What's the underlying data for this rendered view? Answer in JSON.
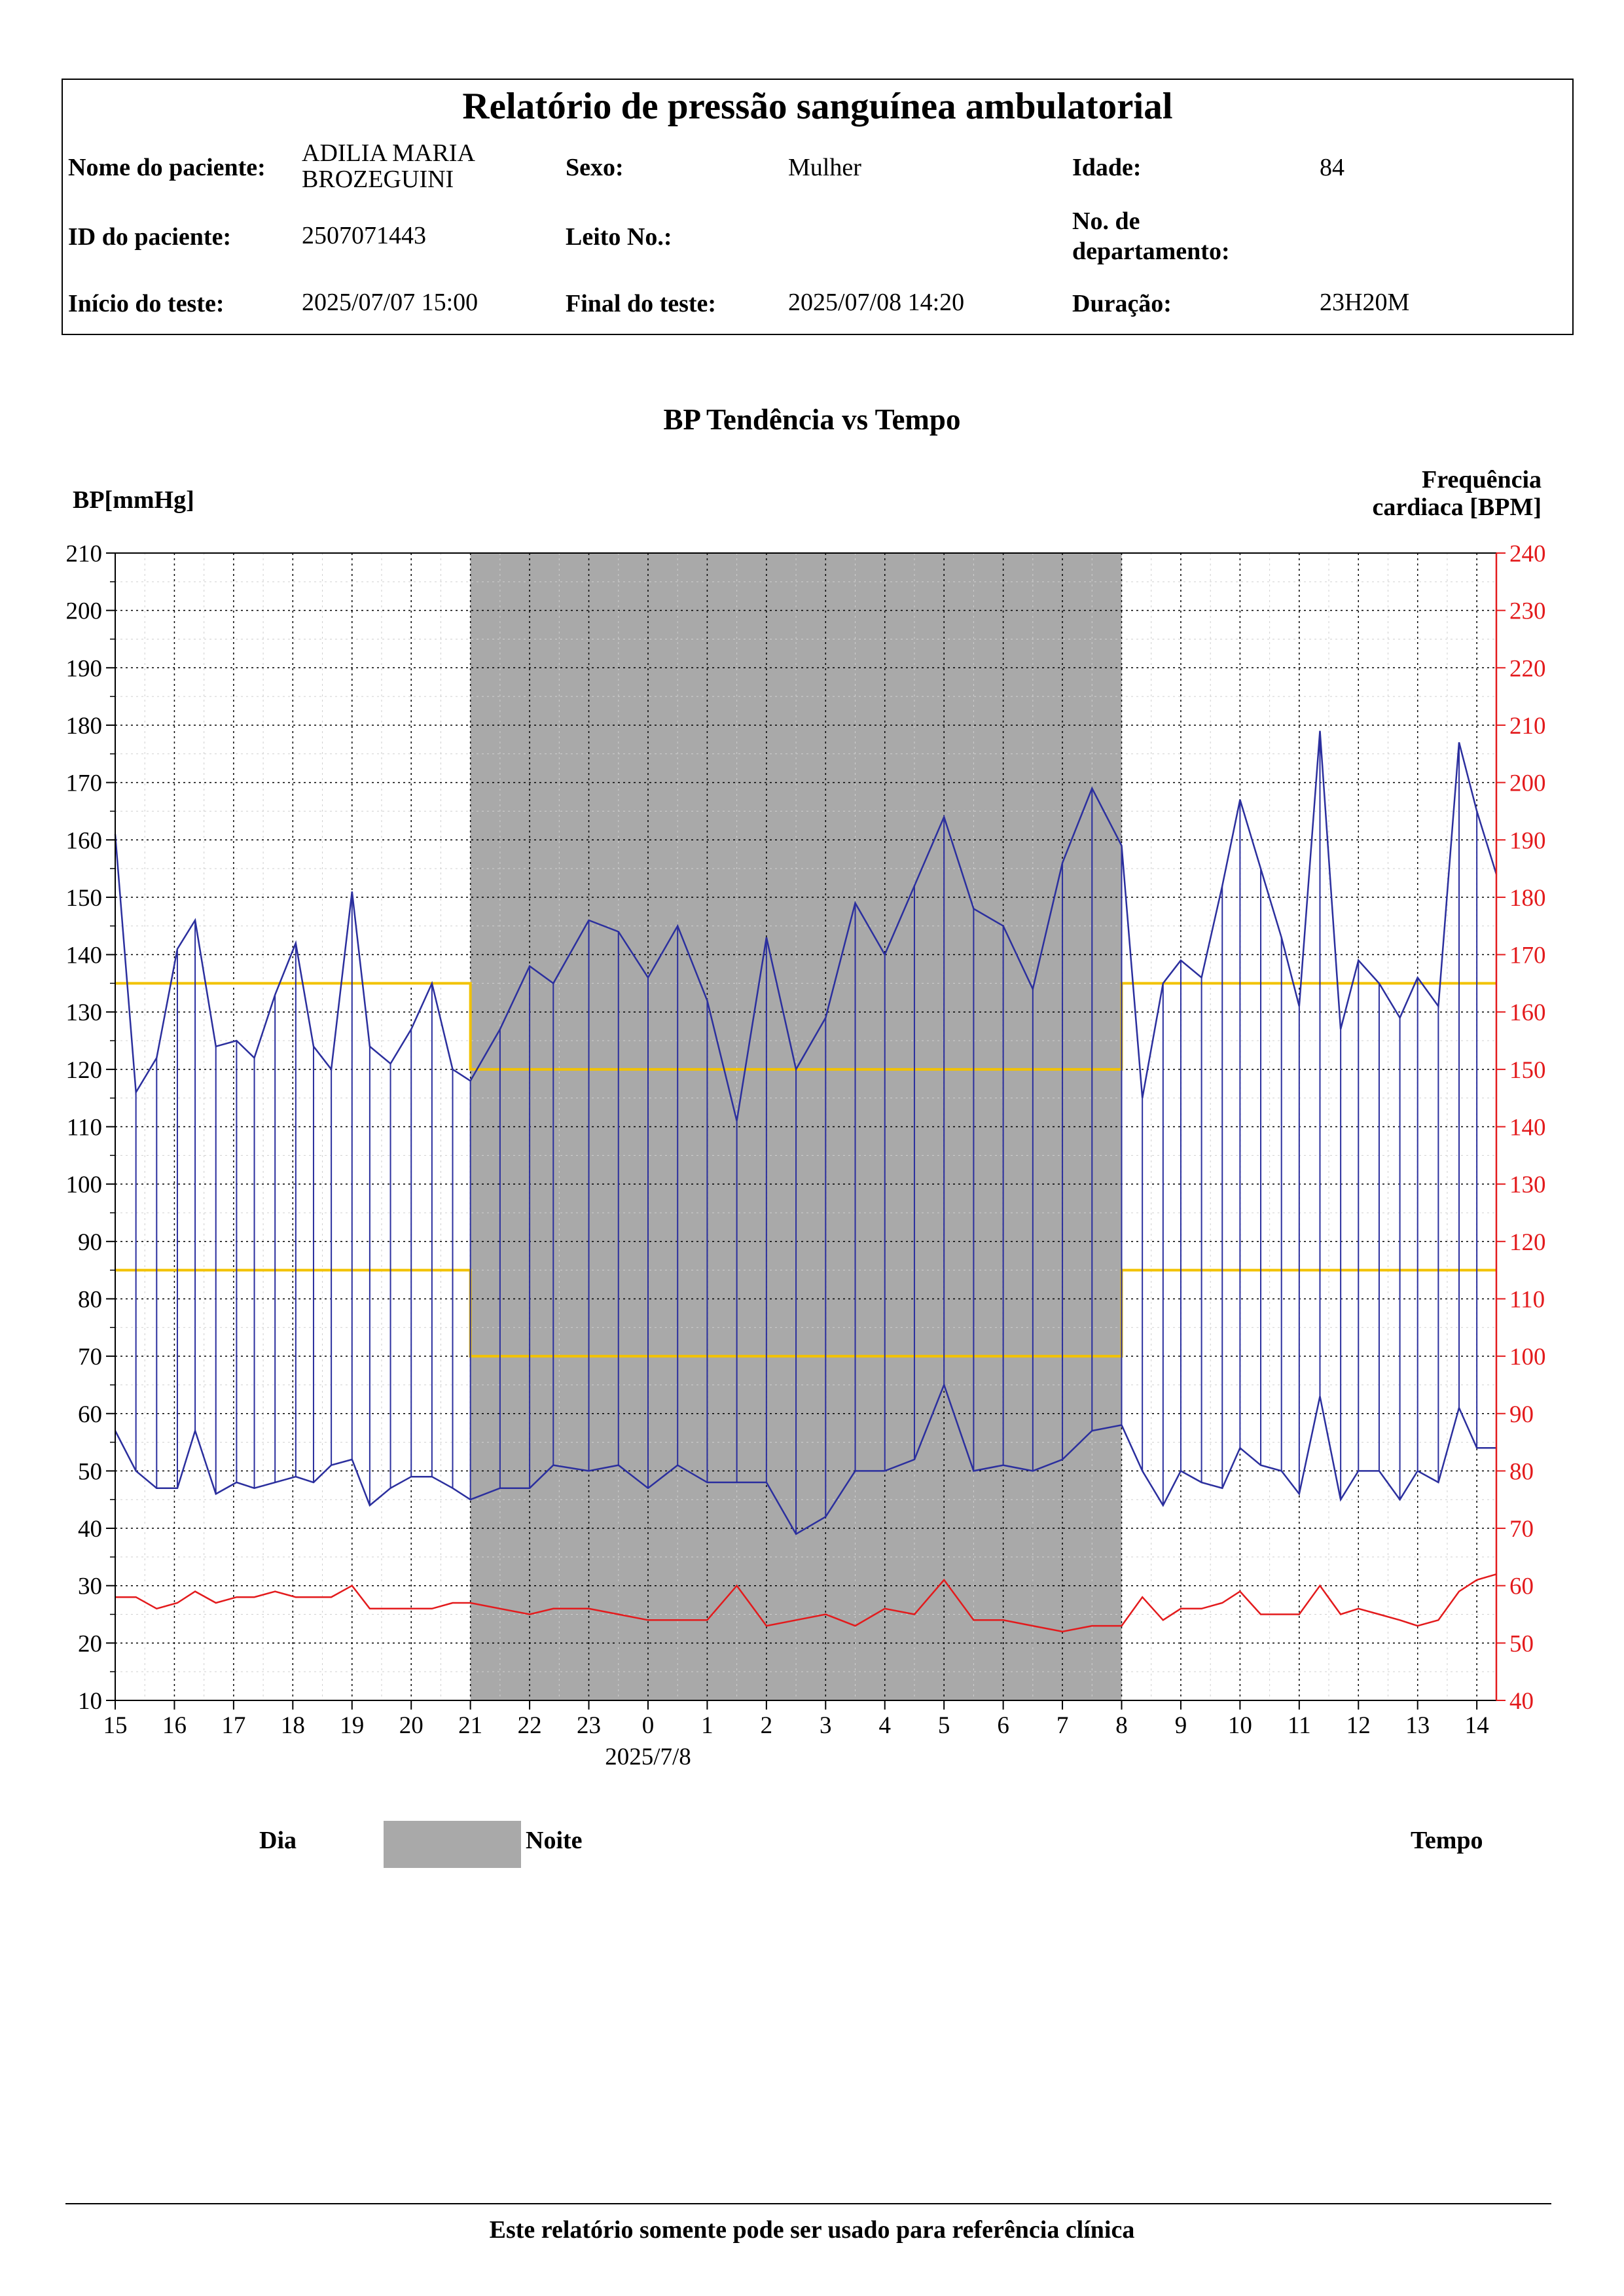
{
  "header": {
    "title": "Relatório de pressão sanguínea ambulatorial",
    "patient_name_label": "Nome do paciente:",
    "patient_name_line1": "ADILIA MARIA",
    "patient_name_line2": "BROZEGUINI",
    "sex_label": "Sexo:",
    "sex_value": "Mulher",
    "age_label": "Idade:",
    "age_value": "84",
    "patient_id_label": "ID do paciente:",
    "patient_id_value": "2507071443",
    "bed_label": "Leito No.:",
    "bed_value": "",
    "dept_label_line1": "No. de",
    "dept_label_line2": "departamento:",
    "dept_value": "",
    "start_label": "Início do teste:",
    "start_value": "2025/07/07 15:00",
    "end_label": "Final do teste:",
    "end_value": "2025/07/08 14:20",
    "duration_label": "Duração:",
    "duration_value": "23H20M"
  },
  "chart_data": {
    "type": "line",
    "title": "BP Tendência vs Tempo",
    "ylabel_left": "BP[mmHg]",
    "ylabel_right_line1": "Frequência",
    "ylabel_right_line2": "cardiaca [BPM]",
    "ylim_left": [
      10,
      210
    ],
    "ylim_right": [
      40,
      240
    ],
    "left_ticks": [
      10,
      20,
      30,
      40,
      50,
      60,
      70,
      80,
      90,
      100,
      110,
      120,
      130,
      140,
      150,
      160,
      170,
      180,
      190,
      200,
      210
    ],
    "right_ticks": [
      40,
      50,
      60,
      70,
      80,
      90,
      100,
      110,
      120,
      130,
      140,
      150,
      160,
      170,
      180,
      190,
      200,
      210,
      220,
      230,
      240
    ],
    "x_hour_range": [
      15,
      38.33
    ],
    "x_tick_labels": [
      "15",
      "16",
      "17",
      "18",
      "19",
      "20",
      "21",
      "22",
      "23",
      "0",
      "1",
      "2",
      "3",
      "4",
      "5",
      "6",
      "7",
      "8",
      "9",
      "10",
      "11",
      "12",
      "13",
      "14"
    ],
    "x_date_label": "2025/7/8",
    "grid": true,
    "night_period": [
      21,
      32
    ],
    "legend": {
      "day": "Dia",
      "night": "Noite",
      "time_label": "Tempo"
    },
    "colors": {
      "bp": "#2b2f9e",
      "hr": "#e31a1c",
      "limit": "#f2c200",
      "night": "#a9a9a9",
      "right_axis": "#e31a1c"
    },
    "limits": {
      "day_systolic": 135,
      "day_diastolic": 85,
      "night_systolic": 120,
      "night_diastolic": 70
    },
    "x_hours": [
      15,
      15.35,
      15.7,
      16.05,
      16.35,
      16.7,
      17.05,
      17.35,
      17.7,
      18.05,
      18.35,
      18.65,
      19.0,
      19.3,
      19.65,
      20.0,
      20.35,
      20.7,
      21.0,
      21.5,
      22.0,
      22.4,
      23.0,
      23.5,
      24.0,
      24.5,
      25.0,
      25.5,
      26.0,
      26.5,
      27.0,
      27.5,
      28.0,
      28.5,
      29.0,
      29.5,
      30.0,
      30.5,
      31.0,
      31.5,
      32.0,
      32.35,
      32.7,
      33.0,
      33.35,
      33.7,
      34.0,
      34.35,
      34.7,
      35.0,
      35.35,
      35.7,
      36.0,
      36.35,
      36.7,
      37.0,
      37.35,
      37.7,
      38.0,
      38.33
    ],
    "series": [
      {
        "name": "systolic",
        "values": [
          161,
          116,
          122,
          141,
          146,
          124,
          125,
          122,
          133,
          142,
          124,
          120,
          151,
          124,
          121,
          127,
          135,
          120,
          118,
          127,
          138,
          135,
          146,
          144,
          136,
          145,
          132,
          111,
          143,
          120,
          129,
          149,
          140,
          152,
          164,
          148,
          145,
          134,
          156,
          169,
          159,
          115,
          135,
          139,
          136,
          152,
          167,
          155,
          143,
          131,
          179,
          127,
          139,
          135,
          129,
          136,
          131,
          177,
          165,
          154
        ]
      },
      {
        "name": "diastolic",
        "values": [
          57,
          50,
          47,
          47,
          57,
          46,
          48,
          47,
          48,
          49,
          48,
          51,
          52,
          44,
          47,
          49,
          49,
          47,
          45,
          47,
          47,
          51,
          50,
          51,
          47,
          51,
          48,
          48,
          48,
          39,
          42,
          50,
          50,
          52,
          65,
          50,
          51,
          50,
          52,
          57,
          58,
          50,
          44,
          50,
          48,
          47,
          54,
          51,
          50,
          46,
          63,
          45,
          50,
          50,
          45,
          50,
          48,
          61,
          54,
          54
        ]
      },
      {
        "name": "heart_rate",
        "values": [
          58,
          58,
          56,
          57,
          59,
          57,
          58,
          58,
          59,
          58,
          58,
          58,
          60,
          56,
          56,
          56,
          56,
          57,
          57,
          56,
          55,
          56,
          56,
          55,
          54,
          54,
          54,
          60,
          53,
          54,
          55,
          53,
          56,
          55,
          61,
          54,
          54,
          53,
          52,
          53,
          53,
          58,
          54,
          56,
          56,
          57,
          59,
          55,
          55,
          55,
          60,
          55,
          56,
          55,
          54,
          53,
          54,
          59,
          61,
          62
        ]
      }
    ]
  },
  "footer": {
    "note": "Este relatório somente pode ser usado para referência clínica"
  }
}
